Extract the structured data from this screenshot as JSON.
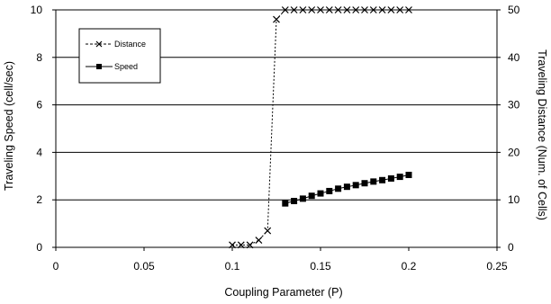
{
  "chart_data": {
    "type": "line",
    "xlabel": "Coupling Parameter (P)",
    "ylabel_left": "Traveling Speed (cell/sec)",
    "ylabel_right": "Traveling Distance (Num. of Cells)",
    "xlim": [
      0,
      0.25
    ],
    "ylim_left": [
      0,
      10
    ],
    "ylim_right": [
      0,
      50
    ],
    "x_ticks": [
      "0",
      "0.05",
      "0.1",
      "0.15",
      "0.2",
      "0.25"
    ],
    "y_left_ticks": [
      "0",
      "2",
      "4",
      "6",
      "8",
      "10"
    ],
    "y_right_ticks": [
      "0",
      "10",
      "20",
      "30",
      "40",
      "50"
    ],
    "grid": "horizontal",
    "legend_placement": "top-left",
    "series": [
      {
        "name": "Distance",
        "axis": "right",
        "marker": "x",
        "line": "dashed",
        "color": "#000000",
        "x": [
          0.1,
          0.105,
          0.11,
          0.115,
          0.12,
          0.125,
          0.13,
          0.135,
          0.14,
          0.145,
          0.15,
          0.155,
          0.16,
          0.165,
          0.17,
          0.175,
          0.18,
          0.185,
          0.19,
          0.195,
          0.2
        ],
        "values": [
          0.5,
          0.5,
          0.5,
          1.5,
          3.5,
          48,
          50,
          50,
          50,
          50,
          50,
          50,
          50,
          50,
          50,
          50,
          50,
          50,
          50,
          50,
          50
        ]
      },
      {
        "name": "Speed",
        "axis": "left",
        "marker": "square",
        "line": "solid",
        "color": "#000000",
        "x": [
          0.13,
          0.135,
          0.14,
          0.145,
          0.15,
          0.155,
          0.16,
          0.165,
          0.17,
          0.175,
          0.18,
          0.185,
          0.19,
          0.195,
          0.2
        ],
        "values": [
          1.85,
          1.95,
          2.05,
          2.17,
          2.27,
          2.37,
          2.47,
          2.55,
          2.62,
          2.7,
          2.77,
          2.83,
          2.9,
          2.97,
          3.05
        ]
      }
    ]
  }
}
